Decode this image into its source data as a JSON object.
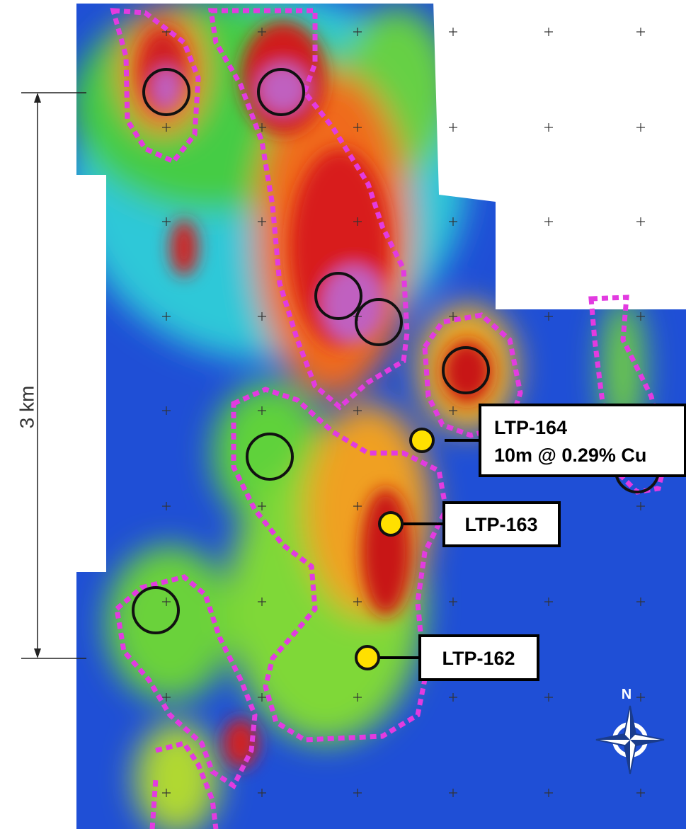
{
  "scale_bar": {
    "label": "3 km"
  },
  "drill_holes": [
    {
      "name": "LTP-164",
      "result": "10m @ 0.29% Cu"
    },
    {
      "name": "LTP-163"
    },
    {
      "name": "LTP-162"
    }
  ],
  "compass": {
    "label": "N"
  }
}
